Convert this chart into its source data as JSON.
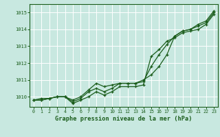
{
  "x": [
    0,
    1,
    2,
    3,
    4,
    5,
    6,
    7,
    8,
    9,
    10,
    11,
    12,
    13,
    14,
    15,
    16,
    17,
    18,
    19,
    20,
    21,
    22,
    23
  ],
  "line1": [
    1009.8,
    1009.9,
    1009.9,
    1010.0,
    1010.0,
    1009.8,
    1010.0,
    1010.4,
    1010.8,
    1010.6,
    1010.7,
    1010.8,
    1010.8,
    1010.8,
    1011.0,
    1011.3,
    1011.8,
    1012.5,
    1013.6,
    1013.9,
    1014.0,
    1014.3,
    1014.5,
    1015.1
  ],
  "line2": [
    1009.8,
    1009.8,
    1009.9,
    1010.0,
    1010.0,
    1009.7,
    1009.9,
    1010.3,
    1010.5,
    1010.3,
    1010.5,
    1010.8,
    1010.8,
    1010.8,
    1010.9,
    1011.8,
    1012.5,
    1013.1,
    1013.6,
    1013.9,
    1014.0,
    1014.2,
    1014.4,
    1015.0
  ],
  "line3": [
    1009.8,
    1009.8,
    1009.9,
    1010.0,
    1010.0,
    1009.6,
    1009.8,
    1010.0,
    1010.3,
    1010.1,
    1010.3,
    1010.6,
    1010.6,
    1010.6,
    1010.7,
    1012.4,
    1012.8,
    1013.3,
    1013.5,
    1013.8,
    1013.9,
    1014.0,
    1014.3,
    1014.9
  ],
  "bg_color": "#c8e8e0",
  "grid_color": "#ffffff",
  "line_color": "#1a5c1a",
  "xlabel": "Graphe pression niveau de la mer (hPa)",
  "ylim": [
    1009.4,
    1015.5
  ],
  "yticks": [
    1010,
    1011,
    1012,
    1013,
    1014,
    1015
  ],
  "marker": "+",
  "linewidth": 0.9,
  "markersize": 3.5
}
